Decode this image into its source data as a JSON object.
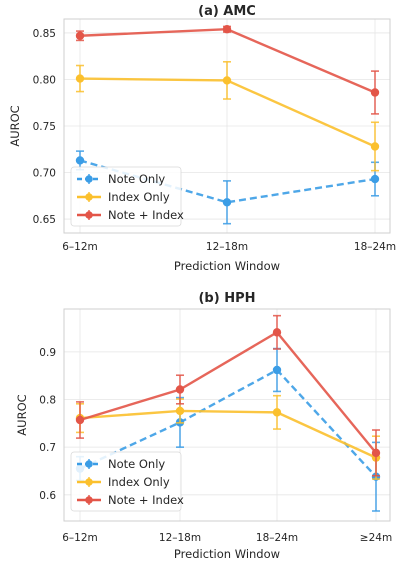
{
  "chart_data": [
    {
      "type": "line",
      "title": "(a) AMC",
      "xlabel": "Prediction Window",
      "ylabel": "AUROC",
      "categories": [
        "6–12m",
        "12–18m",
        "18–24m"
      ],
      "ylim": [
        0.635,
        0.865
      ],
      "yticks": [
        "0.65",
        "0.70",
        "0.75",
        "0.80",
        "0.85"
      ],
      "grid": true,
      "legend": "lower-left",
      "series": [
        {
          "name": "Note Only",
          "color": "#3b9de6",
          "dashed": true,
          "values": [
            0.713,
            0.668,
            0.693
          ],
          "errors": [
            0.01,
            0.023,
            0.018
          ]
        },
        {
          "name": "Index Only",
          "color": "#fbc02d",
          "dashed": false,
          "values": [
            0.801,
            0.799,
            0.728
          ],
          "errors": [
            0.014,
            0.02,
            0.026
          ]
        },
        {
          "name": "Note + Index",
          "color": "#e35548",
          "dashed": false,
          "values": [
            0.847,
            0.854,
            0.786
          ],
          "errors": [
            0.005,
            0.003,
            0.023
          ]
        }
      ]
    },
    {
      "type": "line",
      "title": "(b) HPH",
      "xlabel": "Prediction Window",
      "ylabel": "AUROC",
      "categories": [
        "6–12m",
        "12–18m",
        "18–24m",
        "≥24m"
      ],
      "ylim": [
        0.545,
        0.99
      ],
      "yticks": [
        "0.6",
        "0.7",
        "0.8",
        "0.9"
      ],
      "grid": true,
      "legend": "lower-left",
      "series": [
        {
          "name": "Note Only",
          "color": "#3b9de6",
          "dashed": true,
          "values": [
            0.655,
            0.752,
            0.862,
            0.638
          ],
          "errors": [
            0.025,
            0.052,
            0.045,
            0.072
          ]
        },
        {
          "name": "Index Only",
          "color": "#fbc02d",
          "dashed": false,
          "values": [
            0.761,
            0.776,
            0.773,
            0.678
          ],
          "errors": [
            0.03,
            0.025,
            0.035,
            0.045
          ]
        },
        {
          "name": "Note + Index",
          "color": "#e35548",
          "dashed": false,
          "values": [
            0.757,
            0.821,
            0.941,
            0.688
          ],
          "errors": [
            0.038,
            0.03,
            0.035,
            0.048
          ]
        }
      ]
    }
  ]
}
